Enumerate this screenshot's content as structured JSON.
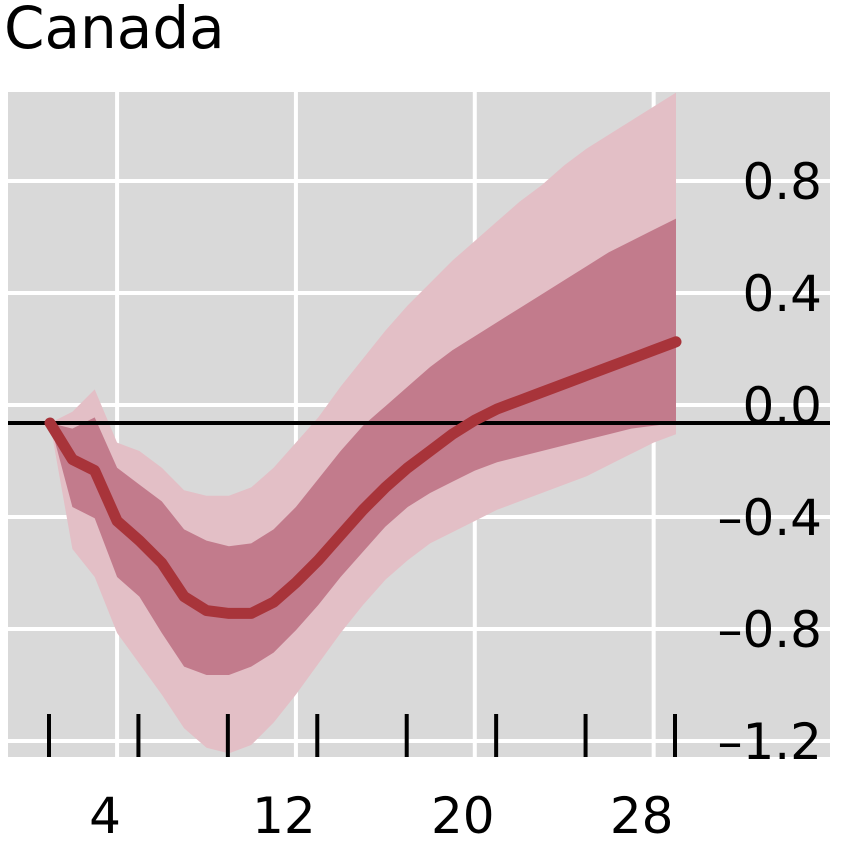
{
  "chart_data": {
    "type": "line",
    "title": "Canada",
    "xlabel": "",
    "ylabel": "",
    "xlim": [
      1,
      35
    ],
    "ylim": [
      -1.42,
      1.2
    ],
    "x_ticks": [
      4,
      12,
      20,
      28
    ],
    "x_tick_labels": [
      "4",
      "12",
      "20",
      "28"
    ],
    "x_minor_ticks": [
      1,
      5,
      9,
      13,
      17,
      21,
      25,
      29
    ],
    "y_ticks": [
      0.8,
      0.4,
      0.0,
      -0.4,
      -0.8,
      -1.2
    ],
    "y_tick_labels": [
      "0.8",
      "0.4",
      "0.0",
      "–0.4",
      "–0.8",
      "–1.2"
    ],
    "y_axis_position": "right",
    "grid": true,
    "zero_line": true,
    "x": [
      1,
      2,
      3,
      4,
      5,
      6,
      7,
      8,
      9,
      10,
      11,
      12,
      13,
      14,
      15,
      16,
      17,
      18,
      19,
      20,
      21,
      22,
      23,
      24,
      25,
      26,
      27,
      28,
      29
    ],
    "series": [
      {
        "values": [
          0.0,
          -0.13,
          -0.17,
          -0.35,
          -0.42,
          -0.5,
          -0.62,
          -0.67,
          -0.68,
          -0.68,
          -0.64,
          -0.57,
          -0.49,
          -0.4,
          -0.31,
          -0.23,
          -0.16,
          -0.1,
          -0.04,
          0.01,
          0.05,
          0.08,
          0.11,
          0.14,
          0.17,
          0.2,
          0.23,
          0.26,
          0.29
        ]
      }
    ],
    "band_inner": {
      "lower": [
        0.0,
        -0.3,
        -0.34,
        -0.55,
        -0.62,
        -0.75,
        -0.87,
        -0.9,
        -0.9,
        -0.87,
        -0.82,
        -0.74,
        -0.65,
        -0.55,
        -0.46,
        -0.37,
        -0.3,
        -0.25,
        -0.21,
        -0.17,
        -0.14,
        -0.12,
        -0.1,
        -0.08,
        -0.06,
        -0.04,
        -0.02,
        -0.01,
        0.0
      ],
      "upper": [
        0.0,
        -0.02,
        0.02,
        -0.16,
        -0.22,
        -0.28,
        -0.38,
        -0.42,
        -0.44,
        -0.43,
        -0.38,
        -0.3,
        -0.2,
        -0.1,
        -0.01,
        0.06,
        0.13,
        0.2,
        0.26,
        0.31,
        0.36,
        0.41,
        0.46,
        0.51,
        0.56,
        0.61,
        0.65,
        0.69,
        0.73
      ]
    },
    "band_outer": {
      "lower": [
        0.0,
        -0.45,
        -0.55,
        -0.75,
        -0.86,
        -0.97,
        -1.09,
        -1.16,
        -1.18,
        -1.15,
        -1.07,
        -0.97,
        -0.86,
        -0.75,
        -0.65,
        -0.56,
        -0.49,
        -0.43,
        -0.39,
        -0.35,
        -0.31,
        -0.28,
        -0.25,
        -0.22,
        -0.19,
        -0.15,
        -0.11,
        -0.07,
        -0.04
      ],
      "upper": [
        0.0,
        0.04,
        0.12,
        -0.07,
        -0.1,
        -0.16,
        -0.24,
        -0.26,
        -0.26,
        -0.23,
        -0.16,
        -0.07,
        0.02,
        0.13,
        0.23,
        0.33,
        0.42,
        0.5,
        0.58,
        0.65,
        0.72,
        0.79,
        0.85,
        0.92,
        0.98,
        1.03,
        1.08,
        1.13,
        1.18
      ]
    },
    "colors": {
      "background": "#d9d9d9",
      "grid": "#ffffff",
      "line": "#a8343a",
      "band_inner": "#c27b8c",
      "band_outer": "#e3bfc6",
      "zero_line": "#000000"
    }
  }
}
